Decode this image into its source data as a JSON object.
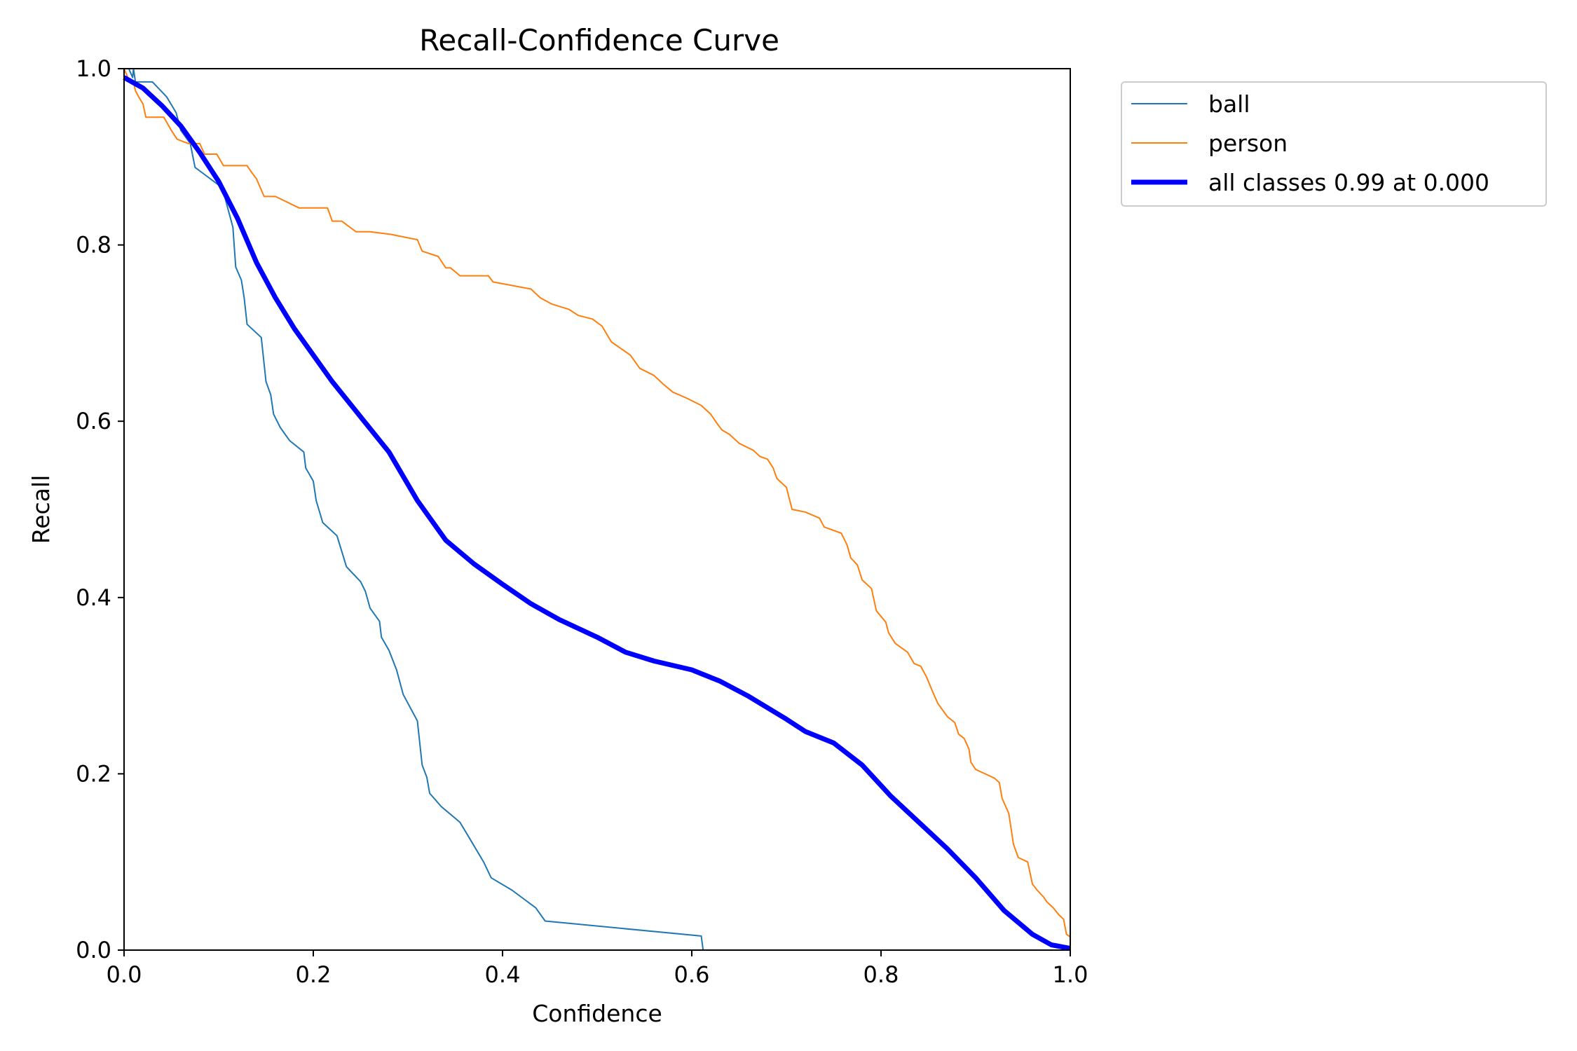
{
  "chart_data": {
    "type": "line",
    "title": "Recall-Confidence Curve",
    "xlabel": "Confidence",
    "ylabel": "Recall",
    "xlim": [
      0.0,
      1.0
    ],
    "ylim": [
      0.0,
      1.0
    ],
    "x_ticks": [
      "0.0",
      "0.2",
      "0.4",
      "0.6",
      "0.8",
      "1.0"
    ],
    "y_ticks": [
      "0.0",
      "0.2",
      "0.4",
      "0.6",
      "0.8",
      "1.0"
    ],
    "grid": false,
    "legend_position": "upper-right-outside",
    "series": [
      {
        "name": "ball",
        "color": "#1f77b4",
        "line_style": "thin",
        "points": [
          [
            0.0,
            1.0
          ],
          [
            0.005,
            1.0
          ],
          [
            0.009,
            0.99
          ],
          [
            0.01,
            1.0
          ],
          [
            0.012,
            0.985
          ],
          [
            0.03,
            0.985
          ],
          [
            0.045,
            0.968
          ],
          [
            0.055,
            0.95
          ],
          [
            0.06,
            0.93
          ],
          [
            0.07,
            0.915
          ],
          [
            0.075,
            0.888
          ],
          [
            0.085,
            0.88
          ],
          [
            0.1,
            0.868
          ],
          [
            0.105,
            0.86
          ],
          [
            0.115,
            0.82
          ],
          [
            0.118,
            0.775
          ],
          [
            0.124,
            0.76
          ],
          [
            0.127,
            0.74
          ],
          [
            0.13,
            0.71
          ],
          [
            0.145,
            0.695
          ],
          [
            0.15,
            0.645
          ],
          [
            0.155,
            0.63
          ],
          [
            0.158,
            0.608
          ],
          [
            0.165,
            0.593
          ],
          [
            0.175,
            0.578
          ],
          [
            0.19,
            0.565
          ],
          [
            0.192,
            0.547
          ],
          [
            0.2,
            0.532
          ],
          [
            0.203,
            0.51
          ],
          [
            0.21,
            0.485
          ],
          [
            0.225,
            0.47
          ],
          [
            0.235,
            0.435
          ],
          [
            0.25,
            0.418
          ],
          [
            0.255,
            0.407
          ],
          [
            0.26,
            0.388
          ],
          [
            0.27,
            0.373
          ],
          [
            0.272,
            0.355
          ],
          [
            0.28,
            0.34
          ],
          [
            0.288,
            0.318
          ],
          [
            0.295,
            0.29
          ],
          [
            0.31,
            0.26
          ],
          [
            0.315,
            0.21
          ],
          [
            0.32,
            0.196
          ],
          [
            0.323,
            0.178
          ],
          [
            0.335,
            0.163
          ],
          [
            0.355,
            0.145
          ],
          [
            0.365,
            0.127
          ],
          [
            0.38,
            0.1
          ],
          [
            0.388,
            0.082
          ],
          [
            0.41,
            0.068
          ],
          [
            0.42,
            0.06
          ],
          [
            0.435,
            0.048
          ],
          [
            0.445,
            0.033
          ],
          [
            0.61,
            0.016
          ],
          [
            0.612,
            0.0
          ],
          [
            1.0,
            0.0
          ]
        ]
      },
      {
        "name": "person",
        "color": "#ff7f0e",
        "line_style": "thin",
        "points": [
          [
            0.0,
            1.0
          ],
          [
            0.004,
            0.99
          ],
          [
            0.01,
            0.985
          ],
          [
            0.012,
            0.975
          ],
          [
            0.016,
            0.967
          ],
          [
            0.02,
            0.96
          ],
          [
            0.023,
            0.945
          ],
          [
            0.042,
            0.945
          ],
          [
            0.05,
            0.93
          ],
          [
            0.056,
            0.92
          ],
          [
            0.068,
            0.915
          ],
          [
            0.08,
            0.915
          ],
          [
            0.085,
            0.903
          ],
          [
            0.098,
            0.903
          ],
          [
            0.105,
            0.89
          ],
          [
            0.13,
            0.89
          ],
          [
            0.135,
            0.882
          ],
          [
            0.14,
            0.875
          ],
          [
            0.148,
            0.855
          ],
          [
            0.16,
            0.855
          ],
          [
            0.185,
            0.842
          ],
          [
            0.215,
            0.842
          ],
          [
            0.22,
            0.827
          ],
          [
            0.23,
            0.827
          ],
          [
            0.245,
            0.815
          ],
          [
            0.26,
            0.815
          ],
          [
            0.282,
            0.812
          ],
          [
            0.31,
            0.806
          ],
          [
            0.315,
            0.793
          ],
          [
            0.332,
            0.787
          ],
          [
            0.34,
            0.774
          ],
          [
            0.345,
            0.774
          ],
          [
            0.355,
            0.765
          ],
          [
            0.385,
            0.765
          ],
          [
            0.39,
            0.758
          ],
          [
            0.43,
            0.75
          ],
          [
            0.44,
            0.74
          ],
          [
            0.452,
            0.733
          ],
          [
            0.47,
            0.727
          ],
          [
            0.48,
            0.72
          ],
          [
            0.495,
            0.716
          ],
          [
            0.505,
            0.708
          ],
          [
            0.515,
            0.69
          ],
          [
            0.535,
            0.675
          ],
          [
            0.545,
            0.66
          ],
          [
            0.56,
            0.652
          ],
          [
            0.57,
            0.642
          ],
          [
            0.58,
            0.633
          ],
          [
            0.595,
            0.626
          ],
          [
            0.61,
            0.618
          ],
          [
            0.62,
            0.608
          ],
          [
            0.627,
            0.597
          ],
          [
            0.632,
            0.59
          ],
          [
            0.64,
            0.585
          ],
          [
            0.65,
            0.575
          ],
          [
            0.665,
            0.567
          ],
          [
            0.672,
            0.56
          ],
          [
            0.68,
            0.557
          ],
          [
            0.686,
            0.547
          ],
          [
            0.69,
            0.535
          ],
          [
            0.7,
            0.525
          ],
          [
            0.706,
            0.5
          ],
          [
            0.72,
            0.497
          ],
          [
            0.735,
            0.49
          ],
          [
            0.74,
            0.48
          ],
          [
            0.758,
            0.473
          ],
          [
            0.764,
            0.46
          ],
          [
            0.768,
            0.445
          ],
          [
            0.775,
            0.437
          ],
          [
            0.78,
            0.42
          ],
          [
            0.79,
            0.41
          ],
          [
            0.795,
            0.385
          ],
          [
            0.805,
            0.372
          ],
          [
            0.808,
            0.36
          ],
          [
            0.815,
            0.348
          ],
          [
            0.828,
            0.338
          ],
          [
            0.835,
            0.325
          ],
          [
            0.842,
            0.322
          ],
          [
            0.848,
            0.31
          ],
          [
            0.855,
            0.292
          ],
          [
            0.86,
            0.28
          ],
          [
            0.87,
            0.265
          ],
          [
            0.878,
            0.258
          ],
          [
            0.882,
            0.245
          ],
          [
            0.888,
            0.24
          ],
          [
            0.893,
            0.228
          ],
          [
            0.895,
            0.213
          ],
          [
            0.9,
            0.205
          ],
          [
            0.91,
            0.2
          ],
          [
            0.92,
            0.195
          ],
          [
            0.925,
            0.19
          ],
          [
            0.928,
            0.172
          ],
          [
            0.935,
            0.155
          ],
          [
            0.94,
            0.12
          ],
          [
            0.945,
            0.105
          ],
          [
            0.955,
            0.1
          ],
          [
            0.96,
            0.075
          ],
          [
            0.965,
            0.068
          ],
          [
            0.972,
            0.06
          ],
          [
            0.975,
            0.055
          ],
          [
            0.982,
            0.048
          ],
          [
            0.988,
            0.04
          ],
          [
            0.993,
            0.035
          ],
          [
            0.996,
            0.018
          ],
          [
            1.0,
            0.015
          ],
          [
            1.0,
            0.0
          ]
        ]
      },
      {
        "name": "all classes 0.99 at 0.000",
        "color": "#0000ff",
        "line_style": "thick",
        "points": [
          [
            0.0,
            0.99
          ],
          [
            0.02,
            0.978
          ],
          [
            0.04,
            0.958
          ],
          [
            0.06,
            0.935
          ],
          [
            0.08,
            0.905
          ],
          [
            0.1,
            0.872
          ],
          [
            0.12,
            0.83
          ],
          [
            0.14,
            0.78
          ],
          [
            0.16,
            0.74
          ],
          [
            0.18,
            0.705
          ],
          [
            0.2,
            0.675
          ],
          [
            0.22,
            0.645
          ],
          [
            0.25,
            0.605
          ],
          [
            0.28,
            0.565
          ],
          [
            0.31,
            0.51
          ],
          [
            0.34,
            0.465
          ],
          [
            0.37,
            0.438
          ],
          [
            0.4,
            0.415
          ],
          [
            0.43,
            0.393
          ],
          [
            0.46,
            0.375
          ],
          [
            0.5,
            0.355
          ],
          [
            0.53,
            0.338
          ],
          [
            0.56,
            0.328
          ],
          [
            0.6,
            0.318
          ],
          [
            0.63,
            0.305
          ],
          [
            0.66,
            0.288
          ],
          [
            0.7,
            0.262
          ],
          [
            0.72,
            0.248
          ],
          [
            0.75,
            0.235
          ],
          [
            0.78,
            0.21
          ],
          [
            0.81,
            0.175
          ],
          [
            0.84,
            0.145
          ],
          [
            0.87,
            0.115
          ],
          [
            0.9,
            0.082
          ],
          [
            0.93,
            0.045
          ],
          [
            0.96,
            0.018
          ],
          [
            0.98,
            0.006
          ],
          [
            1.0,
            0.002
          ]
        ]
      }
    ]
  }
}
